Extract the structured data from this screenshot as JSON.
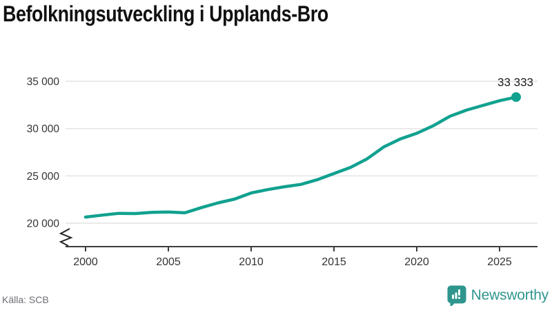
{
  "title": "Befolkningsutveckling i Upplands-Bro",
  "source": "Källa: SCB",
  "branding": {
    "logo_text": "Newsworthy"
  },
  "colors": {
    "line": "#11a190",
    "dot": "#11a190",
    "grid": "#e3e3e3",
    "axis": "#3c3c3c",
    "tick_text": "#333333",
    "title_text": "#111111",
    "end_label_text": "#1a1a1a",
    "source_text": "#6d6d76",
    "brand_teal": "#2f968e"
  },
  "chart_data": {
    "type": "line",
    "title": "Befolkningsutveckling i Upplands-Bro",
    "series_name": "Befolkning",
    "x": [
      2000,
      2001,
      2002,
      2003,
      2004,
      2005,
      2006,
      2007,
      2008,
      2009,
      2010,
      2011,
      2012,
      2013,
      2014,
      2015,
      2016,
      2017,
      2018,
      2019,
      2020,
      2021,
      2022,
      2023,
      2024,
      2025,
      2026
    ],
    "values": [
      20650,
      20850,
      21040,
      21020,
      21140,
      21190,
      21100,
      21650,
      22150,
      22550,
      23200,
      23550,
      23850,
      24100,
      24600,
      25250,
      25900,
      26800,
      28050,
      28900,
      29500,
      30300,
      31300,
      31950,
      32450,
      32950,
      33333
    ],
    "xlabel": "",
    "ylabel": "",
    "ylim": [
      20000,
      35000
    ],
    "axis_break": true,
    "grid": "horizontal",
    "legend": "none",
    "yticks": [
      {
        "value": 20000,
        "label": "20 000"
      },
      {
        "value": 25000,
        "label": "25 000"
      },
      {
        "value": 30000,
        "label": "30 000"
      },
      {
        "value": 35000,
        "label": "35 000"
      }
    ],
    "xticks": [
      {
        "value": 2000,
        "label": "2000"
      },
      {
        "value": 2005,
        "label": "2005"
      },
      {
        "value": 2010,
        "label": "2010"
      },
      {
        "value": 2015,
        "label": "2015"
      },
      {
        "value": 2020,
        "label": "2020"
      },
      {
        "value": 2025,
        "label": "2025"
      }
    ],
    "end_point": {
      "year": 2026,
      "value": 33333,
      "label": "33 333"
    }
  }
}
